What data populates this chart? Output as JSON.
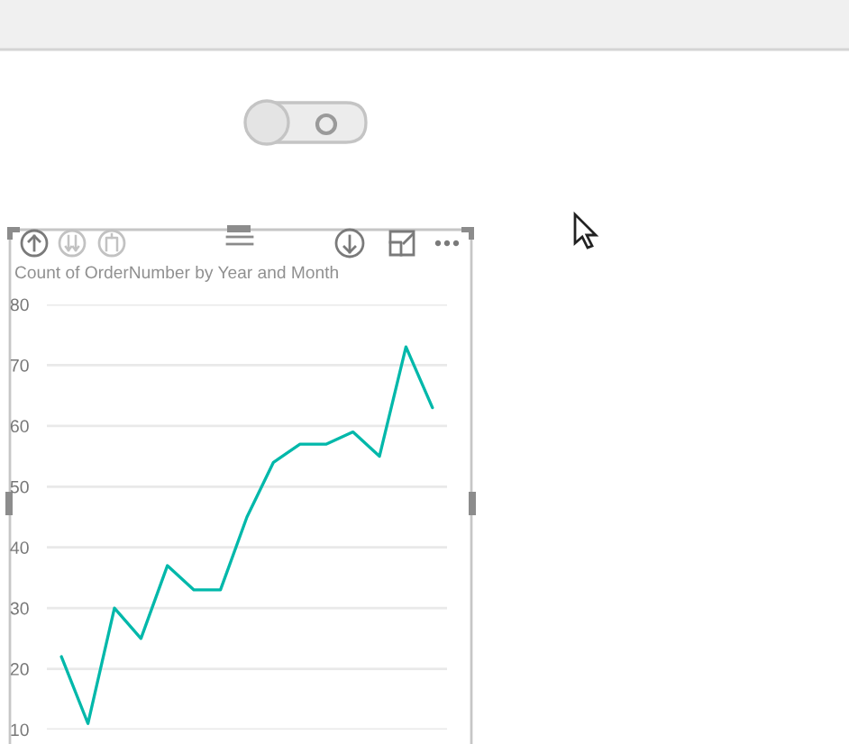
{
  "chart_data": {
    "type": "line",
    "title": "Count of OrderNumber by Year and Month",
    "categories": [
      null,
      null,
      null,
      null,
      null,
      null,
      null,
      null,
      null,
      null,
      null,
      null,
      null,
      null,
      null
    ],
    "series": [
      {
        "color": "#01b8aa",
        "values": [
          22,
          11,
          30,
          25,
          37,
          33,
          33,
          45,
          54,
          57,
          57,
          59,
          55,
          73,
          63
        ]
      }
    ],
    "ylim": [
      10,
      80
    ],
    "yticks": [
      10,
      20,
      30,
      40,
      50,
      60,
      70,
      80
    ],
    "grid": "y",
    "tick_labels": "y",
    "line_style": "solid"
  }
}
